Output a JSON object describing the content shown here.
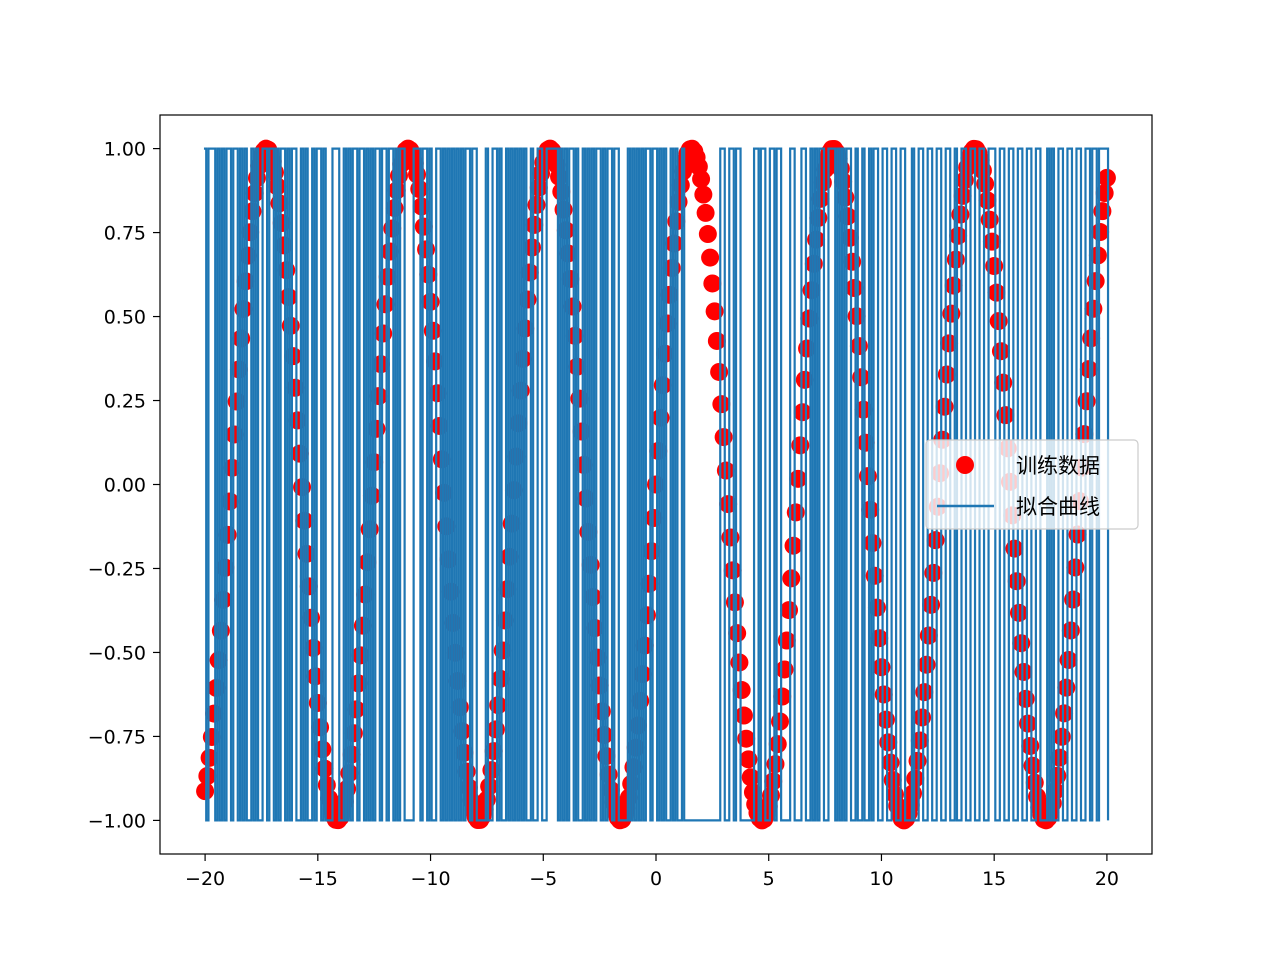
{
  "chart_data": {
    "type": "scatter",
    "title": "",
    "xlabel": "",
    "ylabel": "",
    "xlim": [
      -22,
      22
    ],
    "ylim": [
      -1.1,
      1.1
    ],
    "grid": false,
    "legend_position": "center-right",
    "x_ticks": [
      -20,
      -15,
      -10,
      -5,
      0,
      5,
      10,
      15,
      20
    ],
    "x_tick_labels": [
      "−20",
      "−15",
      "−10",
      "−5",
      "0",
      "5",
      "10",
      "15",
      "20"
    ],
    "y_ticks": [
      -1.0,
      -0.75,
      -0.5,
      -0.25,
      0.0,
      0.25,
      0.5,
      0.75,
      1.0
    ],
    "y_tick_labels": [
      "−1.00",
      "−0.75",
      "−0.50",
      "−0.25",
      "0.00",
      "0.25",
      "0.50",
      "0.75",
      "1.00"
    ],
    "series": [
      {
        "name": "训练数据",
        "kind": "scatter",
        "color": "#ff0000",
        "function": "sin(x)",
        "x_start": -20,
        "x_end": 20,
        "x_step": 0.1
      },
      {
        "name": "拟合曲线",
        "kind": "step-line",
        "color": "#1f77b4",
        "x": [
          -20.05,
          -19.95,
          -19.85,
          -19.55,
          -19.45,
          -19.35,
          -19.25,
          -19.15,
          -19.05,
          -18.85,
          -18.75,
          -18.55,
          -18.45,
          -18.35,
          -18.25,
          -18.15,
          -17.95,
          -17.85,
          -17.75,
          -17.65,
          -17.45,
          -17.25,
          -17.15,
          -16.95,
          -16.85,
          -16.75,
          -16.65,
          -16.45,
          -16.35,
          -16.25,
          -16.15,
          -15.95,
          -15.75,
          -15.65,
          -15.55,
          -15.45,
          -15.25,
          -15.15,
          -15.05,
          -14.85,
          -14.75,
          -14.65,
          -14.35,
          -14.05,
          -13.85,
          -13.75,
          -13.65,
          -13.55,
          -13.45,
          -13.25,
          -13.15,
          -12.95,
          -12.85,
          -12.75,
          -12.65,
          -12.55,
          -12.45,
          -12.25,
          -12.15,
          -11.95,
          -11.85,
          -11.65,
          -11.55,
          -11.45,
          -11.35,
          -11.15,
          -10.75,
          -10.45,
          -10.35,
          -10.15,
          -10.05,
          -9.95,
          -9.75,
          -9.55,
          -9.45,
          -9.35,
          -9.25,
          -9.15,
          -9.05,
          -8.95,
          -8.85,
          -8.75,
          -8.65,
          -8.55,
          -8.45,
          -8.25,
          -8.15,
          -7.95,
          -7.55,
          -7.45,
          -7.25,
          -7.05,
          -6.95,
          -6.85,
          -6.65,
          -6.55,
          -6.45,
          -6.35,
          -6.25,
          -6.15,
          -6.05,
          -5.95,
          -5.85,
          -5.75,
          -5.55,
          -5.45,
          -5.25,
          -5.05,
          -4.85,
          -4.35,
          -4.25,
          -4.15,
          -4.05,
          -3.95,
          -3.85,
          -3.65,
          -3.55,
          -3.45,
          -3.25,
          -3.15,
          -3.05,
          -2.95,
          -2.85,
          -2.75,
          -2.65,
          -2.45,
          -2.35,
          -2.25,
          -2.15,
          -1.95,
          -1.85,
          -1.65,
          -1.25,
          -1.15,
          -1.05,
          -0.95,
          -0.85,
          -0.75,
          -0.65,
          -0.55,
          -0.45,
          -0.25,
          -0.15,
          0.05,
          0.15,
          0.25,
          0.35,
          0.45,
          0.65,
          0.75,
          0.85,
          0.95,
          1.15,
          1.25,
          2.85,
          3.05,
          3.25,
          3.45,
          3.55,
          3.75,
          4.35,
          4.55,
          4.65,
          4.85,
          5.05,
          5.25,
          5.35,
          5.55,
          5.95,
          6.15,
          6.45,
          6.65,
          6.85,
          6.95,
          7.05,
          7.15,
          7.25,
          7.45,
          7.65,
          7.95,
          8.05,
          8.15,
          8.25,
          8.35,
          8.45,
          8.65,
          8.85,
          8.95,
          9.15,
          9.25,
          9.45,
          9.55,
          9.65,
          9.85,
          10.05,
          10.25,
          10.45,
          10.65,
          10.85,
          11.05,
          11.35,
          11.45,
          11.65,
          11.85,
          12.05,
          12.25,
          12.45,
          12.65,
          12.85,
          13.05,
          13.25,
          13.35,
          13.55,
          13.75,
          13.95,
          14.15,
          14.35,
          14.55,
          14.75,
          15.05,
          15.25,
          15.45,
          15.65,
          15.85,
          16.05,
          16.25,
          16.45,
          16.65,
          16.85,
          17.05,
          17.35,
          17.45,
          17.55,
          17.65,
          17.85,
          18.05,
          18.25,
          18.45,
          18.65,
          18.85,
          19.05,
          19.25,
          19.35,
          19.55,
          19.65,
          20.05
        ],
        "levels": [
          1,
          -1,
          1,
          -1,
          1,
          -1,
          1,
          -1,
          1,
          -1,
          1,
          -1,
          1,
          -1,
          1,
          -1,
          1,
          -1,
          1,
          -1,
          1,
          -1,
          1,
          -1,
          1,
          -1,
          1,
          -1,
          1,
          -1,
          1,
          -1,
          1,
          -1,
          1,
          -1,
          1,
          -1,
          1,
          -1,
          1,
          -1,
          1,
          -1,
          1,
          -1,
          1,
          -1,
          1,
          -1,
          1,
          -1,
          1,
          -1,
          1,
          -1,
          1,
          -1,
          1,
          -1,
          1,
          -1,
          1,
          -1,
          1,
          -1,
          1,
          -1,
          1,
          -1,
          1,
          -1,
          1,
          -1,
          1,
          -1,
          1,
          -1,
          1,
          -1,
          1,
          -1,
          1,
          -1,
          1,
          -1,
          1,
          -1,
          1,
          -1,
          1,
          -1,
          1,
          -1,
          1,
          -1,
          1,
          -1,
          1,
          -1,
          1,
          -1,
          1,
          -1,
          1,
          -1,
          1,
          -1,
          1,
          -1,
          1,
          -1,
          1,
          -1,
          1,
          -1,
          1,
          -1,
          1,
          -1,
          1,
          -1,
          1,
          -1,
          1,
          -1,
          1,
          -1,
          1,
          -1,
          1,
          -1,
          1,
          -1,
          1,
          -1,
          1,
          -1,
          1,
          -1,
          1,
          -1,
          1,
          -1,
          1,
          -1,
          1,
          -1,
          1,
          -1,
          1,
          -1,
          1,
          -1,
          1,
          -1,
          1,
          -1,
          1,
          -1,
          1,
          -1,
          1,
          -1,
          1,
          -1,
          1,
          -1,
          1,
          -1,
          1,
          -1,
          1,
          -1,
          1,
          -1,
          1,
          -1,
          1,
          -1,
          1,
          -1,
          1,
          -1,
          1,
          -1,
          1,
          -1,
          1,
          -1,
          1,
          -1,
          1,
          -1,
          1,
          -1,
          1,
          -1,
          1,
          -1,
          1,
          -1,
          1,
          -1,
          1,
          -1,
          1,
          -1,
          1,
          -1,
          1,
          -1,
          1,
          -1,
          1,
          -1,
          1,
          -1,
          1,
          -1,
          1,
          -1,
          1,
          -1,
          1,
          -1,
          1,
          -1,
          1,
          -1,
          1,
          -1,
          1,
          -1,
          1,
          -1,
          1,
          -1,
          1,
          -1,
          1,
          -1,
          1,
          -1,
          1,
          -1,
          1
        ]
      }
    ]
  }
}
